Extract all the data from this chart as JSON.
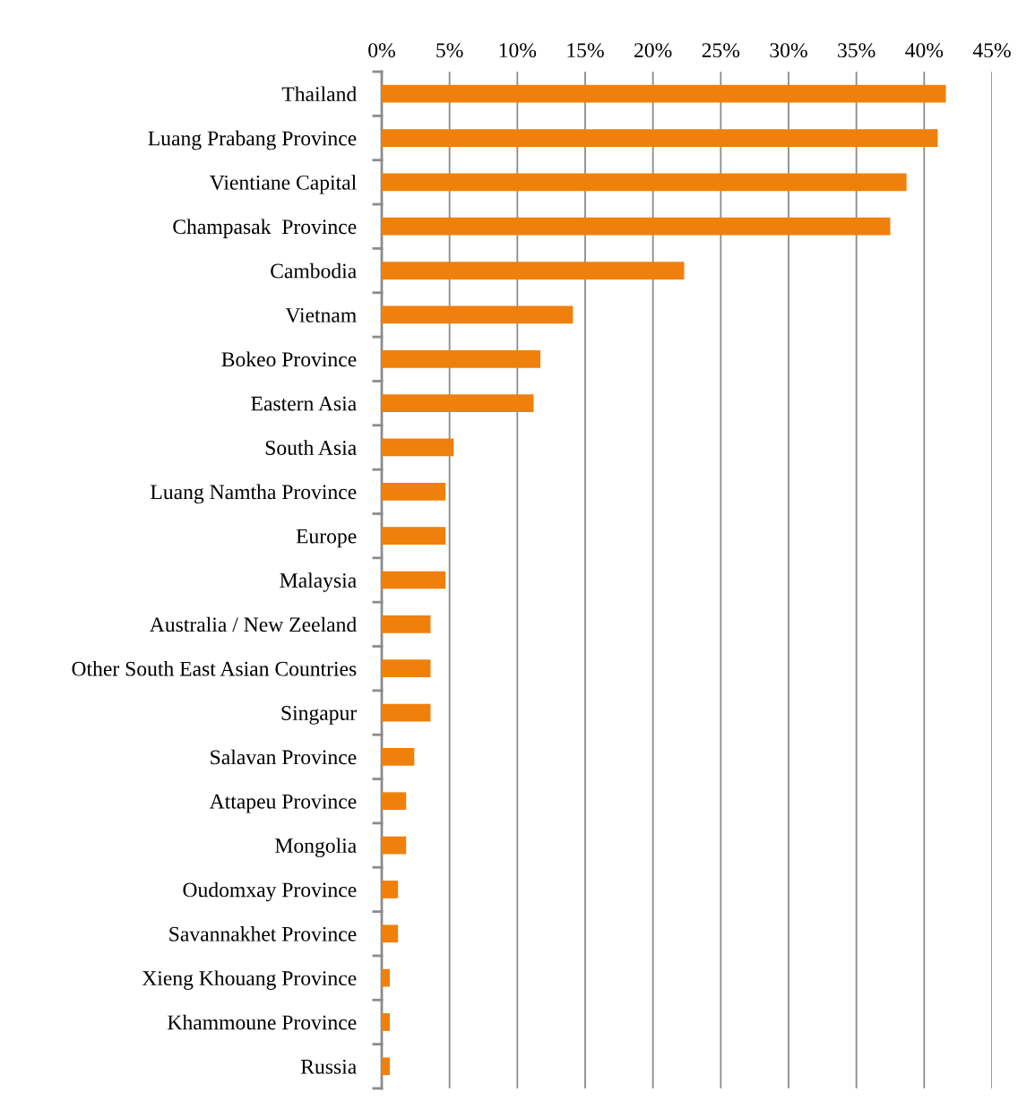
{
  "chart_data": {
    "type": "bar",
    "orientation": "horizontal",
    "categories": [
      "Thailand",
      "Luang Prabang Province",
      "Vientiane Capital",
      "Champasak  Province",
      "Cambodia",
      "Vietnam",
      "Bokeo Province",
      "Eastern Asia",
      "South Asia",
      "Luang Namtha Province",
      "Europe",
      "Malaysia",
      "Australia / New Zeeland",
      "Other South East Asian Countries",
      "Singapur",
      "Salavan Province",
      "Attapeu Province",
      "Mongolia",
      "Oudomxay Province",
      "Savannakhet Province",
      "Xieng Khouang Province",
      "Khammoune Province",
      "Russia"
    ],
    "values": [
      41.6,
      41.0,
      38.7,
      37.5,
      22.3,
      14.1,
      11.7,
      11.2,
      5.3,
      4.7,
      4.7,
      4.7,
      3.6,
      3.6,
      3.6,
      2.4,
      1.8,
      1.8,
      1.2,
      1.2,
      0.6,
      0.6,
      0.6
    ],
    "color": "#f0800c",
    "xlim": [
      0,
      45
    ],
    "xticks": [
      {
        "value": 0,
        "label": "0%"
      },
      {
        "value": 5,
        "label": "5%"
      },
      {
        "value": 10,
        "label": "10%"
      },
      {
        "value": 15,
        "label": "15%"
      },
      {
        "value": 20,
        "label": "20%"
      },
      {
        "value": 25,
        "label": "25%"
      },
      {
        "value": 30,
        "label": "30%"
      },
      {
        "value": 35,
        "label": "35%"
      },
      {
        "value": 40,
        "label": "40%"
      },
      {
        "value": 45,
        "label": "45%"
      }
    ],
    "grid": "x",
    "legend": false
  }
}
